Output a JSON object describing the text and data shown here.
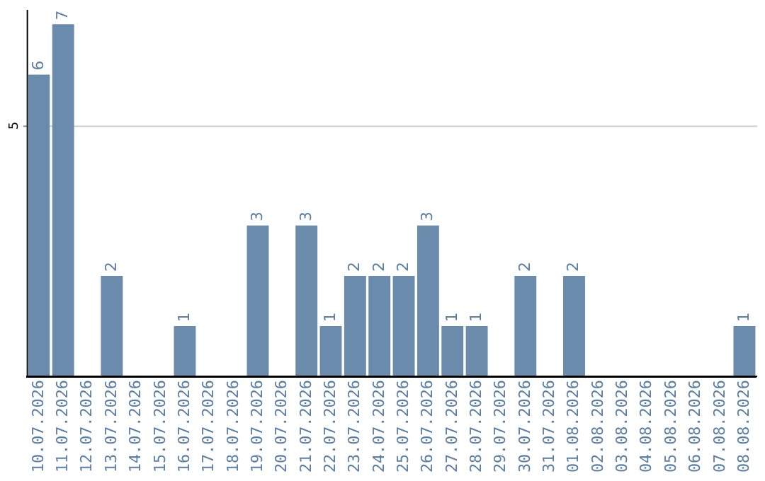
{
  "chart_data": {
    "type": "bar",
    "categories": [
      "10.07.2026",
      "11.07.2026",
      "12.07.2026",
      "13.07.2026",
      "14.07.2026",
      "15.07.2026",
      "16.07.2026",
      "17.07.2026",
      "18.07.2026",
      "19.07.2026",
      "20.07.2026",
      "21.07.2026",
      "22.07.2026",
      "23.07.2026",
      "24.07.2026",
      "25.07.2026",
      "26.07.2026",
      "27.07.2026",
      "28.07.2026",
      "29.07.2026",
      "30.07.2026",
      "31.07.2026",
      "01.08.2026",
      "02.08.2026",
      "03.08.2026",
      "04.08.2026",
      "05.08.2026",
      "06.08.2026",
      "07.08.2026",
      "08.08.2026"
    ],
    "values": [
      6,
      7,
      0,
      2,
      0,
      0,
      1,
      0,
      0,
      3,
      0,
      3,
      1,
      2,
      2,
      2,
      3,
      1,
      1,
      0,
      2,
      0,
      2,
      0,
      0,
      0,
      0,
      0,
      0,
      1
    ],
    "value_labels": [
      "6",
      "7",
      null,
      "2",
      null,
      null,
      "1",
      null,
      null,
      "3",
      null,
      "3",
      "1",
      "2",
      "2",
      "2",
      "3",
      "1",
      "1",
      null,
      "2",
      null,
      "2",
      null,
      null,
      null,
      null,
      null,
      null,
      "1"
    ],
    "color": "#6a8bab",
    "ylim": [
      0,
      7.3
    ],
    "yticks": [
      5
    ],
    "grid": "y"
  }
}
